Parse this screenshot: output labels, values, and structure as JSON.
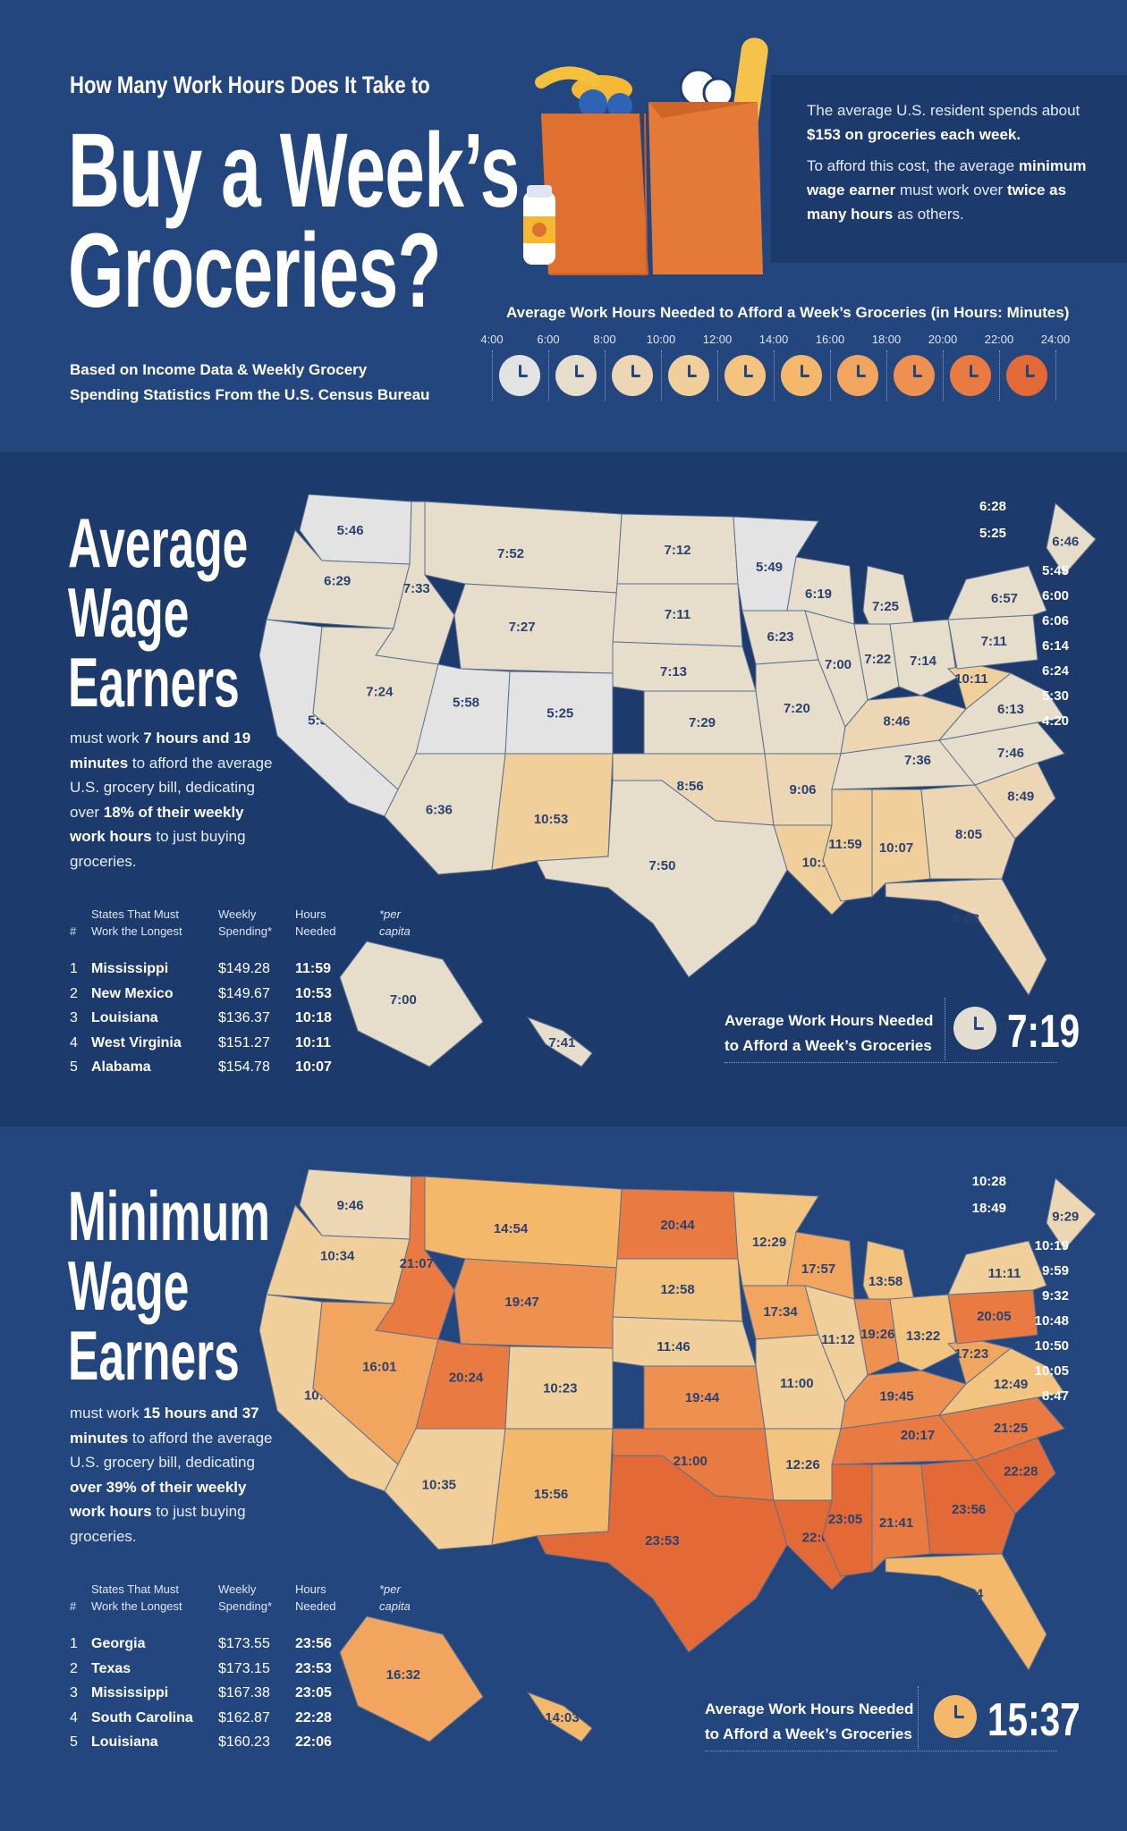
{
  "header": {
    "kicker": "How Many Work Hours Does It Take to",
    "title_line1": "Buy a Week’s",
    "title_line2": "Groceries?",
    "subtitle_line1": "Based on Income Data & Weekly Grocery",
    "subtitle_line2": "Spending Statistics From the U.S. Census Bureau",
    "info": {
      "p1_a": "The average U.S. resident spends about ",
      "p1_b": "$153 on groceries each week.",
      "p2_a": "To afford this cost, the average ",
      "p2_b": "minimum wage earner",
      "p2_c": " must work over ",
      "p2_d": "twice as many hours",
      "p2_e": " as others."
    },
    "clock_scale_title": "Average Work Hours Needed to Afford a Week’s Groceries (in Hours: Minutes)",
    "scale_labels": [
      "4:00",
      "6:00",
      "8:00",
      "10:00",
      "12:00",
      "14:00",
      "16:00",
      "18:00",
      "20:00",
      "22:00",
      "24:00"
    ],
    "clock_colors": [
      "#e2e3e2",
      "#e7ddcb",
      "#ecd6b4",
      "#f0cf9a",
      "#f3c47f",
      "#f4b86a",
      "#f2a55e",
      "#ee9050",
      "#e97b42",
      "#e36a36"
    ]
  },
  "average": {
    "title1": "Average",
    "title2": "Wage",
    "title3": "Earners",
    "desc": {
      "a": "must work ",
      "b": "7 hours and 19 minutes",
      "c": " to afford the average U.S. grocery bill, dedicating over ",
      "d": "18% of their weekly work hours",
      "e": " to just buying groceries."
    },
    "table": {
      "h_num": "#",
      "h_state1": "States That Must",
      "h_state2": "Work the Longest",
      "h_spend1": "Weekly",
      "h_spend2": "Spending*",
      "h_hours1": "Hours",
      "h_hours2": "Needed",
      "h_note1": "*per",
      "h_note2": "capita",
      "rows": [
        {
          "n": "1",
          "state": "Mississippi",
          "spend": "$149.28",
          "hours": "11:59"
        },
        {
          "n": "2",
          "state": "New Mexico",
          "spend": "$149.67",
          "hours": "10:53"
        },
        {
          "n": "3",
          "state": "Louisiana",
          "spend": "$136.37",
          "hours": "10:18"
        },
        {
          "n": "4",
          "state": "West Virginia",
          "spend": "$151.27",
          "hours": "10:11"
        },
        {
          "n": "5",
          "state": "Alabama",
          "spend": "$154.78",
          "hours": "10:07"
        }
      ]
    },
    "badge_label1": "Average Work Hours Needed",
    "badge_label2": "to Afford a Week’s Groceries",
    "badge_value": "7:19",
    "map_labels": {
      "WA": "5:46",
      "OR": "6:29",
      "CA": "5:56",
      "ID": "7:33",
      "NV": "7:24",
      "MT": "7:52",
      "WY": "7:27",
      "UT": "5:58",
      "AZ": "6:36",
      "CO": "5:25",
      "NM": "10:53",
      "ND": "7:12",
      "SD": "7:11",
      "NE": "7:13",
      "KS": "7:29",
      "OK": "8:56",
      "TX": "7:50",
      "MN": "5:49",
      "IA": "6:23",
      "MO": "7:20",
      "AR": "9:06",
      "LA": "10:18",
      "WI": "6:19",
      "IL": "7:00",
      "MS": "11:59",
      "MI": "7:25",
      "IN": "7:22",
      "OH": "7:14",
      "KY": "8:46",
      "TN": "7:36",
      "AL": "10:07",
      "GA": "8:05",
      "FL": "8:08",
      "SC": "8:49",
      "NC": "7:46",
      "VA": "6:13",
      "WV": "10:11",
      "PA": "7:11",
      "NY": "6:57",
      "ME": "6:46",
      "AK": "7:00",
      "HI": "7:41",
      "VT": "6:28",
      "NH": "5:25",
      "MA": "5:45",
      "RI": "6:00",
      "CT": "6:06",
      "NJ": "6:14",
      "DE": "6:24",
      "MD": "5:30",
      "DC": "4:20"
    }
  },
  "minimum": {
    "title1": "Minimum",
    "title2": "Wage",
    "title3": "Earners",
    "desc": {
      "a": "must work ",
      "b": "15 hours and 37 minutes",
      "c": " to afford the average U.S. grocery bill, dedicating ",
      "d": "over 39% of their weekly work hours",
      "e": " to just buying groceries."
    },
    "table": {
      "h_num": "#",
      "h_state1": "States That Must",
      "h_state2": "Work the Longest",
      "h_spend1": "Weekly",
      "h_spend2": "Spending*",
      "h_hours1": "Hours",
      "h_hours2": "Needed",
      "h_note1": "*per",
      "h_note2": "capita",
      "rows": [
        {
          "n": "1",
          "state": "Georgia",
          "spend": "$173.55",
          "hours": "23:56"
        },
        {
          "n": "2",
          "state": "Texas",
          "spend": "$173.15",
          "hours": "23:53"
        },
        {
          "n": "3",
          "state": "Mississippi",
          "spend": "$167.38",
          "hours": "23:05"
        },
        {
          "n": "4",
          "state": "South Carolina",
          "spend": "$162.87",
          "hours": "22:28"
        },
        {
          "n": "5",
          "state": "Louisiana",
          "spend": "$160.23",
          "hours": "22:06"
        }
      ]
    },
    "badge_label1": "Average Work Hours Needed",
    "badge_label2": "to Afford a Week’s Groceries",
    "badge_value": "15:37",
    "map_labels": {
      "WA": "9:46",
      "OR": "10:34",
      "CA": "10:34",
      "ID": "21:07",
      "NV": "16:01",
      "MT": "14:54",
      "WY": "19:47",
      "UT": "20:24",
      "AZ": "10:35",
      "CO": "10:23",
      "NM": "15:56",
      "ND": "20:44",
      "SD": "12:58",
      "NE": "11:46",
      "KS": "19:44",
      "OK": "21:00",
      "TX": "23:53",
      "MN": "12:29",
      "IA": "17:34",
      "MO": "11:00",
      "AR": "12:26",
      "LA": "22:06",
      "WI": "17:57",
      "IL": "11:12",
      "MS": "23:05",
      "MI": "13:58",
      "IN": "19:26",
      "OH": "13:22",
      "KY": "19:45",
      "TN": "20:17",
      "AL": "21:41",
      "GA": "23:56",
      "FL": "14:14",
      "SC": "22:28",
      "NC": "21:25",
      "VA": "12:49",
      "WV": "17:23",
      "PA": "20:05",
      "NY": "11:11",
      "ME": "9:29",
      "AK": "16:32",
      "HI": "14:03",
      "VT": "10:28",
      "NH": "18:49",
      "MA": "10:19",
      "RI": "9:59",
      "CT": "9:32",
      "NJ": "10:48",
      "DE": "10:50",
      "MD": "10:05",
      "DC": "8:47"
    }
  }
}
